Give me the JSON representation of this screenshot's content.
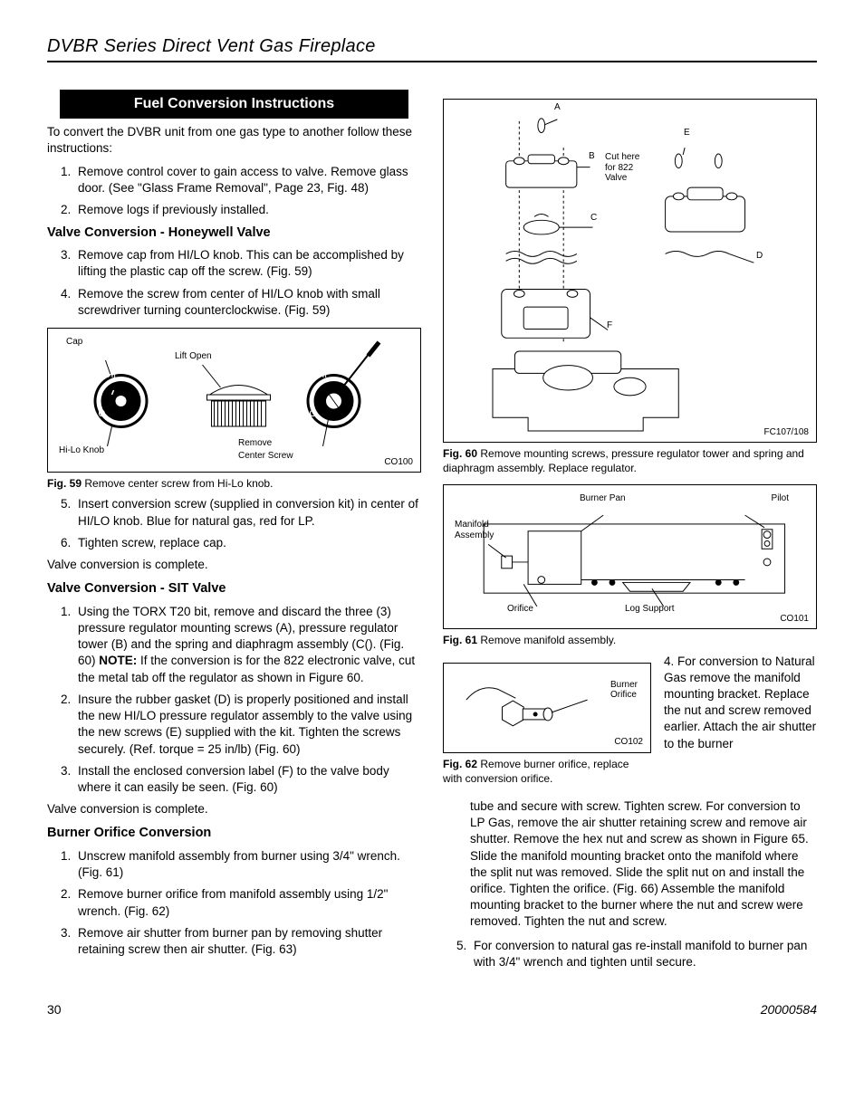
{
  "header": {
    "title": "DVBR Series Direct Vent Gas Fireplace"
  },
  "banner": "Fuel Conversion Instructions",
  "intro": "To convert the DVBR unit from one gas type to another follow these instructions:",
  "steps_intro": [
    "Remove control cover to gain access to valve. Remove glass door. (See \"Glass Frame Removal\", Page 23, Fig. 48)",
    "Remove logs if previously installed."
  ],
  "honeywell": {
    "heading": "Valve Conversion - Honeywell Valve",
    "steps": [
      "Remove cap from HI/LO knob. This can be accomplished by lifting the plastic cap off the screw. (Fig. 59)",
      "Remove the screw from center of HI/LO knob with small screwdriver turning counterclockwise. (Fig. 59)"
    ],
    "fig59": {
      "labels": {
        "cap": "Cap",
        "lift_open": "Lift Open",
        "hi": "HI",
        "lo": "LO",
        "hilo_knob": "Hi-Lo Knob",
        "remove_center": "Remove\nCenter Screw"
      },
      "id": "CO100",
      "caption_bold": "Fig. 59",
      "caption_rest": " Remove center screw from Hi-Lo knob."
    },
    "steps_after": [
      "Insert conversion screw (supplied in conversion kit) in center of HI/LO knob. Blue for natural gas, red for LP.",
      "Tighten screw, replace cap."
    ],
    "complete": "Valve conversion is complete."
  },
  "sit": {
    "heading": "Valve Conversion - SIT Valve",
    "steps": [
      "Using the TORX T20 bit, remove and discard the three (3) pressure regulator mounting screws (A), pressure regulator tower (B) and the spring and diaphragm assembly (C(). (Fig. 60) NOTE: If the conversion is for the 822 electronic valve, cut the metal tab off the regulator as shown in Figure 60.",
      "Insure the rubber gasket (D) is properly positioned and install the new HI/LO pressure regulator assembly to the valve using the new screws (E) supplied with the kit. Tighten the screws securely. (Ref. torque = 25 in/lb) (Fig. 60)",
      "Install the enclosed conversion label (F) to the valve body where it can easily be seen. (Fig. 60)"
    ],
    "complete": "Valve conversion is complete."
  },
  "burner": {
    "heading": "Burner Orifice Conversion",
    "steps": [
      "Unscrew manifold assembly from burner using 3/4\" wrench. (Fig. 61)",
      "Remove burner orifice from manifold assembly using 1/2\" wrench. (Fig. 62)",
      "Remove air shutter from burner pan by removing shutter retaining screw then air shutter. (Fig. 63)"
    ]
  },
  "fig60": {
    "labels": {
      "a": "A",
      "b": "B",
      "c": "C",
      "d": "D",
      "e": "E",
      "f": "F",
      "cut": "Cut here\nfor 822\nValve"
    },
    "id": "FC107/108",
    "caption_bold": "Fig. 60",
    "caption_rest": "  Remove mounting screws, pressure regulator tower and spring and diaphragm assembly. Replace regulator."
  },
  "fig61": {
    "labels": {
      "burner_pan": "Burner Pan",
      "pilot": "Pilot",
      "manifold": "Manifold\nAssembly",
      "orifice": "Orifice",
      "log_support": "Log Support"
    },
    "id": "CO101",
    "caption_bold": "Fig. 61",
    "caption_rest": "   Remove manifold assembly."
  },
  "fig62": {
    "labels": {
      "burner_orifice": "Burner\nOrifice"
    },
    "id": "CO102",
    "caption_bold": "Fig. 62",
    "caption_rest": "  Remove burner orifice, replace with conversion orifice."
  },
  "right_step4_aside": "4.   For conversion to Natural Gas remove the manifold mounting bracket. Replace the nut and screw removed earlier. Attach the air shutter to the burner",
  "right_step4_cont": "tube and secure with screw. Tighten screw. For conversion to LP Gas, remove the air shutter retaining screw and remove air shutter. Remove the hex nut and screw as shown in Figure 65. Slide the manifold mounting bracket onto the manifold where the split nut was removed. Slide the split nut on and install the orifice. Tighten the orifice. (Fig. 66) Assemble the manifold mounting bracket to the burner where the nut and screw were removed. Tighten the nut and screw.",
  "right_step5": "For conversion to natural gas re-install manifold to burner pan with 3/4\" wrench and tighten until secure.",
  "footer": {
    "page": "30",
    "docnum": "20000584"
  }
}
